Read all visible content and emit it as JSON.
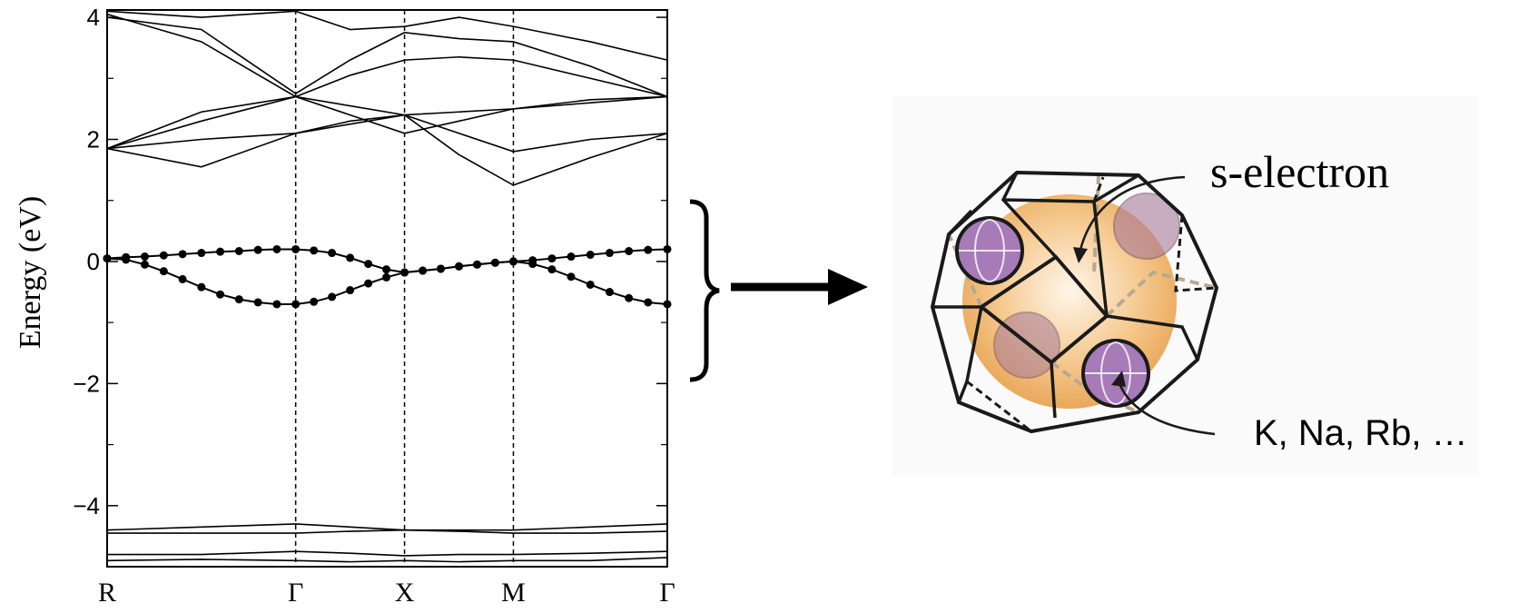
{
  "chart_data": {
    "type": "line",
    "ylabel": "Energy (eV)",
    "xlim": [
      0,
      5.146
    ],
    "xticks": [
      {
        "value": 0,
        "label": "R"
      },
      {
        "value": 1.732,
        "label": "Γ"
      },
      {
        "value": 2.732,
        "label": "X"
      },
      {
        "value": 3.732,
        "label": "M"
      },
      {
        "value": 5.146,
        "label": "Γ"
      }
    ],
    "ylim": [
      -5,
      4.12
    ],
    "yticks": [
      {
        "value": 4,
        "label": "4"
      },
      {
        "value": 2,
        "label": "2"
      },
      {
        "value": 0,
        "label": "0"
      },
      {
        "value": -2,
        "label": "−2"
      },
      {
        "value": -4,
        "label": "−4"
      }
    ],
    "yminorticks": [
      3,
      1,
      -1,
      -3
    ],
    "series": [
      {
        "color": "#000000",
        "markers": true,
        "x": [
          0,
          0.173,
          0.346,
          0.52,
          0.693,
          0.866,
          1.039,
          1.212,
          1.386,
          1.559,
          1.732,
          1.899,
          2.065,
          2.232,
          2.399,
          2.565,
          2.732,
          2.899,
          3.065,
          3.232,
          3.399,
          3.565,
          3.732,
          3.909,
          4.086,
          4.262,
          4.439,
          4.616,
          4.793,
          4.969,
          5.146
        ],
        "values": [
          0.05,
          0.07,
          0.08,
          0.1,
          0.12,
          0.14,
          0.16,
          0.17,
          0.19,
          0.2,
          0.2,
          0.18,
          0.14,
          0.06,
          -0.04,
          -0.13,
          -0.18,
          -0.15,
          -0.12,
          -0.08,
          -0.05,
          -0.02,
          0.0,
          0.02,
          0.05,
          0.08,
          0.11,
          0.14,
          0.17,
          0.19,
          0.2
        ]
      },
      {
        "color": "#000000",
        "markers": true,
        "x": [
          0,
          0.173,
          0.346,
          0.52,
          0.693,
          0.866,
          1.039,
          1.212,
          1.386,
          1.559,
          1.732,
          1.899,
          2.065,
          2.232,
          2.399,
          2.565,
          2.732,
          2.899,
          3.065,
          3.232,
          3.399,
          3.565,
          3.732,
          3.909,
          4.086,
          4.262,
          4.439,
          4.616,
          4.793,
          4.969,
          5.146
        ],
        "values": [
          0.05,
          0.03,
          -0.05,
          -0.16,
          -0.29,
          -0.42,
          -0.54,
          -0.62,
          -0.67,
          -0.7,
          -0.7,
          -0.66,
          -0.58,
          -0.47,
          -0.36,
          -0.26,
          -0.18,
          -0.15,
          -0.12,
          -0.08,
          -0.05,
          -0.02,
          0.0,
          -0.04,
          -0.13,
          -0.25,
          -0.38,
          -0.5,
          -0.6,
          -0.67,
          -0.7
        ]
      },
      {
        "color": "#000000",
        "x": [
          0,
          0.866,
          1.732,
          2.232,
          2.732,
          3.232,
          3.732,
          4.439,
          5.146
        ],
        "values": [
          1.85,
          1.55,
          2.1,
          2.25,
          2.4,
          1.75,
          1.25,
          1.7,
          2.1
        ]
      },
      {
        "color": "#000000",
        "x": [
          0,
          0.866,
          1.732,
          2.232,
          2.732,
          3.232,
          3.732,
          4.439,
          5.146
        ],
        "values": [
          1.85,
          2.3,
          2.7,
          2.55,
          2.4,
          2.45,
          2.5,
          2.6,
          2.7
        ]
      },
      {
        "color": "#000000",
        "x": [
          0,
          0.866,
          1.732,
          2.232,
          2.732,
          3.232,
          3.732,
          4.439,
          5.146
        ],
        "values": [
          1.85,
          2.0,
          2.1,
          2.3,
          2.4,
          2.1,
          1.8,
          2.0,
          2.1
        ]
      },
      {
        "color": "#000000",
        "x": [
          0,
          0.866,
          1.732,
          2.232,
          2.732,
          3.232,
          3.732,
          4.439,
          5.146
        ],
        "values": [
          1.85,
          2.45,
          2.7,
          2.4,
          2.1,
          2.3,
          2.5,
          2.65,
          2.7
        ]
      },
      {
        "color": "#000000",
        "x": [
          0,
          0.866,
          1.732,
          2.232,
          2.732,
          3.232,
          3.732,
          4.439,
          5.146
        ],
        "values": [
          4.05,
          3.6,
          2.7,
          3.05,
          3.3,
          3.35,
          3.3,
          3.0,
          2.7
        ]
      },
      {
        "color": "#000000",
        "x": [
          0,
          0.866,
          1.732,
          2.232,
          2.732,
          3.232,
          3.732,
          4.439,
          5.146
        ],
        "values": [
          4.0,
          3.8,
          2.75,
          3.3,
          3.75,
          3.65,
          3.6,
          3.2,
          2.7
        ]
      },
      {
        "color": "#000000",
        "x": [
          0,
          0.866,
          1.732,
          2.232,
          2.732,
          3.232,
          3.732,
          4.439,
          5.146
        ],
        "values": [
          4.1,
          4.0,
          4.1,
          3.8,
          3.85,
          4.0,
          3.85,
          3.6,
          3.3
        ]
      },
      {
        "color": "#000000",
        "x": [
          0,
          0.866,
          1.732,
          2.232,
          2.732,
          3.232,
          3.732,
          4.439,
          5.146
        ],
        "values": [
          -4.4,
          -4.35,
          -4.3,
          -4.35,
          -4.4,
          -4.4,
          -4.4,
          -4.35,
          -4.3
        ]
      },
      {
        "color": "#000000",
        "x": [
          0,
          0.866,
          1.732,
          2.232,
          2.732,
          3.232,
          3.732,
          4.439,
          5.146
        ],
        "values": [
          -4.45,
          -4.45,
          -4.45,
          -4.42,
          -4.4,
          -4.42,
          -4.45,
          -4.45,
          -4.42
        ]
      },
      {
        "color": "#000000",
        "x": [
          0,
          0.866,
          1.732,
          2.232,
          2.732,
          3.232,
          3.732,
          4.439,
          5.146
        ],
        "values": [
          -4.8,
          -4.8,
          -4.75,
          -4.78,
          -4.82,
          -4.8,
          -4.8,
          -4.78,
          -4.75
        ]
      },
      {
        "color": "#000000",
        "x": [
          0,
          0.866,
          1.732,
          2.232,
          2.732,
          3.232,
          3.732,
          4.439,
          5.146
        ],
        "values": [
          -4.9,
          -4.88,
          -4.9,
          -4.92,
          -4.9,
          -4.92,
          -4.9,
          -4.9,
          -4.85
        ]
      }
    ]
  },
  "diagram": {
    "electron_label": "s-electron",
    "ion_label": "K, Na, Rb, …"
  }
}
